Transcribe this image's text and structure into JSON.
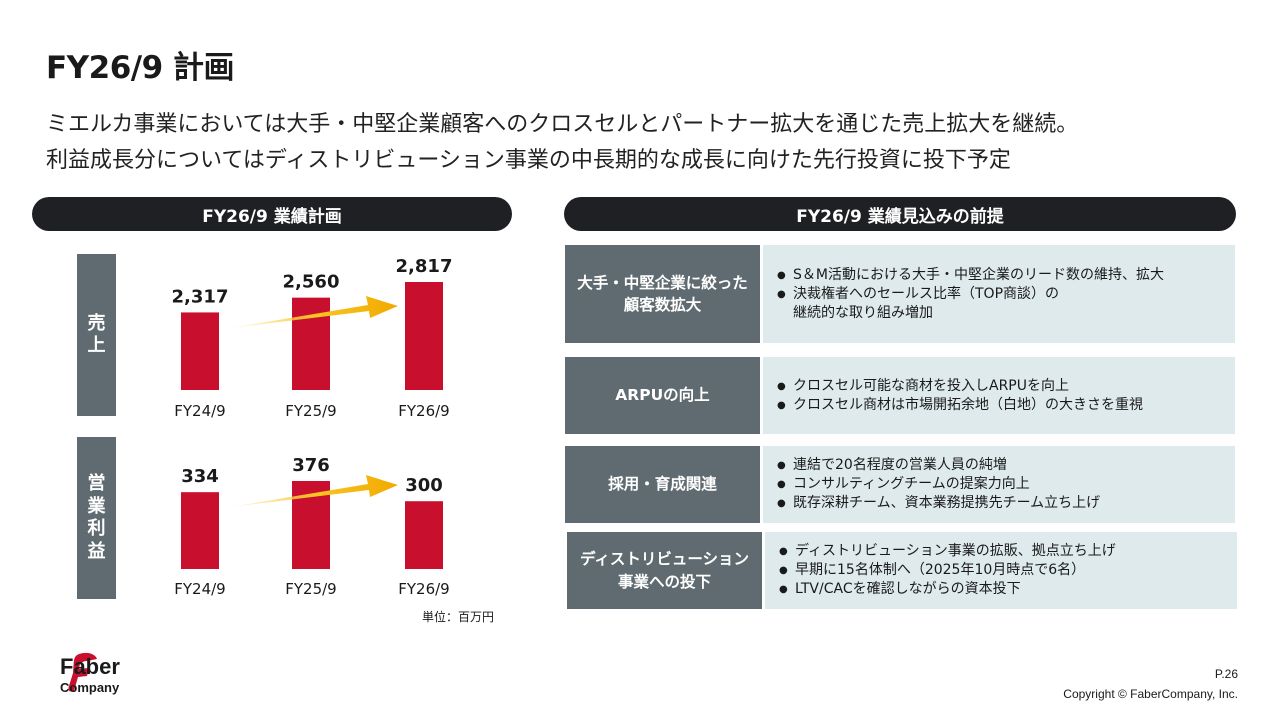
{
  "title": "FY26/9 計画",
  "lead": [
    "ミエルカ事業においては大手・中堅企業顧客へのクロスセルとパートナー拡大を通じた売上拡大を継続。",
    "利益成長分についてはディストリビューション事業の中長期的な成長に向けた先行投資に投下予定"
  ],
  "left_header": "FY26/9 業績計画",
  "right_header": "FY26/9 業績見込みの前提",
  "side_labels": {
    "sales": [
      "売",
      "上"
    ],
    "profit": [
      "営",
      "業",
      "利",
      "益"
    ]
  },
  "unit_note": "単位：百万円",
  "chart_data": [
    {
      "type": "bar",
      "series_label": "売上",
      "categories": [
        "FY24/9",
        "FY25/9",
        "FY26/9"
      ],
      "values": [
        2317,
        2560,
        2817
      ],
      "value_labels": [
        "2,317",
        "2,560",
        "2,817"
      ],
      "annotation": "upward-arrow"
    },
    {
      "type": "bar",
      "series_label": "営業利益",
      "categories": [
        "FY24/9",
        "FY25/9",
        "FY26/9"
      ],
      "values": [
        334,
        376,
        300
      ],
      "value_labels": [
        "334",
        "376",
        "300"
      ],
      "annotation": "upward-arrow"
    }
  ],
  "assumptions": [
    {
      "label": [
        "大手・中堅企業に絞った",
        "顧客数拡大"
      ],
      "bullets": [
        {
          "text": "S＆M活動における大手・中堅企業のリード数の維持、拡大"
        },
        {
          "text": "決裁権者へのセールス比率（TOP商談）の",
          "cont": "継続的な取り組み増加"
        }
      ]
    },
    {
      "label": [
        "ARPUの向上"
      ],
      "bullets": [
        {
          "text": "クロスセル可能な商材を投入しARPUを向上"
        },
        {
          "text": "クロスセル商材は市場開拓余地（白地）の大きさを重視"
        }
      ]
    },
    {
      "label": [
        "採用・育成関連"
      ],
      "bullets": [
        {
          "text": "連結で20名程度の営業人員の純増"
        },
        {
          "text": "コンサルティングチームの提案力向上"
        },
        {
          "text": "既存深耕チーム、資本業務提携先チーム立ち上げ"
        }
      ]
    },
    {
      "label": [
        "ディストリビューション",
        "事業への投下"
      ],
      "bullets": [
        {
          "text": "ディストリビューション事業の拡販、拠点立ち上げ"
        },
        {
          "text": "早期に15名体制へ（2025年10月時点で6名）"
        },
        {
          "text": "LTV/CACを確認しながらの資本投下"
        }
      ]
    }
  ],
  "footer": {
    "logo_line1": "Faber",
    "logo_line2": "Company",
    "page": "P.26",
    "copyright": "Copyright © FaberCompany, Inc."
  },
  "colors": {
    "bar": "#c8102e",
    "arrow": "#f5b400",
    "label_bg": "#5f6b70",
    "body_bg": "#deeaec",
    "pill_bg": "#1e2023"
  }
}
